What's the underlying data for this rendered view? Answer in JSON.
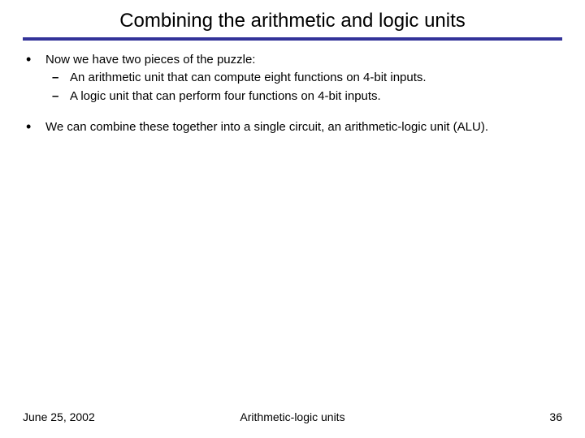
{
  "title": "Combining the arithmetic and logic units",
  "rule_color": "#333399",
  "bullets": [
    {
      "text": "Now we have two pieces of the puzzle:",
      "subs": [
        "An arithmetic unit that can compute eight functions on 4-bit inputs.",
        "A logic unit that can perform four functions on 4-bit inputs."
      ]
    },
    {
      "text": "We can combine these together into a single circuit, an arithmetic-logic unit (ALU).",
      "subs": []
    }
  ],
  "footer": {
    "date": "June 25, 2002",
    "center": "Arithmetic-logic units",
    "page": "36"
  },
  "style": {
    "bg": "#ffffff",
    "text_color": "#000000",
    "title_fontsize": 24,
    "body_fontsize": 15,
    "footer_fontsize": 14
  }
}
